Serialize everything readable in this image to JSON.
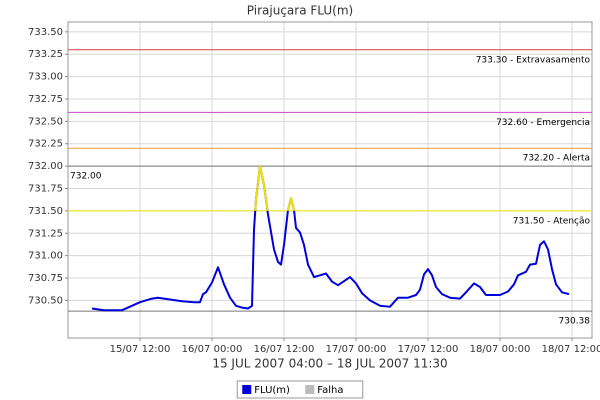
{
  "chart_data": {
    "type": "line",
    "title": "Pirajuçara FLU(m)",
    "xlabel": "15 JUL 2007 04:00 – 18 JUL 2007 11:30",
    "xlim": [
      "2007-07-15T00:00",
      "2007-07-18T15:20"
    ],
    "xticks": [
      {
        "value": "2007-07-15T12:00",
        "label": "15/07 12:00"
      },
      {
        "value": "2007-07-16T00:00",
        "label": "16/07 00:00"
      },
      {
        "value": "2007-07-16T12:00",
        "label": "16/07 12:00"
      },
      {
        "value": "2007-07-17T00:00",
        "label": "17/07 00:00"
      },
      {
        "value": "2007-07-17T12:00",
        "label": "17/07 12:00"
      },
      {
        "value": "2007-07-18T00:00",
        "label": "18/07 00:00"
      },
      {
        "value": "2007-07-18T12:00",
        "label": "18/07 12:00"
      }
    ],
    "ylim": [
      730.08,
      733.61
    ],
    "yticks": [
      {
        "value": 730.5,
        "label": "730.50"
      },
      730.75,
      {
        "value": 731,
        "label": "731.00"
      },
      731.25,
      {
        "value": 731.5,
        "label": "731.50"
      },
      731.75,
      {
        "value": 732,
        "label": "732.00"
      },
      732.25,
      {
        "value": 732.5,
        "label": "732.50"
      },
      732.75,
      {
        "value": 733,
        "label": "733.00"
      },
      733.25,
      {
        "value": 733.5,
        "label": "733.50"
      }
    ],
    "grid": true,
    "thresholds": [
      {
        "value": 733.3,
        "label": "733.30 - Extravasamento",
        "color": "#d04040",
        "side": "right"
      },
      {
        "value": 732.6,
        "label": "732.60 - Emergencia",
        "color": "#cc44cc",
        "side": "right"
      },
      {
        "value": 732.2,
        "label": "732.20 - Alerta",
        "color": "#ff9933",
        "side": "right"
      },
      {
        "value": 732.0,
        "label": "732.00",
        "color": "#777777",
        "side": "left"
      },
      {
        "value": 731.5,
        "label": "731.50 - Atenção",
        "color": "#e8e800",
        "side": "right"
      },
      {
        "value": 730.38,
        "label": "730.38",
        "color": "#777777",
        "side": "right"
      }
    ],
    "highlight": {
      "above": 731.5,
      "color": "#f0e000"
    },
    "series": [
      {
        "name": "FLU(m)",
        "color": "#0000dd",
        "x": [
          "2007-07-15T04:00",
          "2007-07-15T06:00",
          "2007-07-15T09:00",
          "2007-07-15T10:00",
          "2007-07-15T12:00",
          "2007-07-15T14:00",
          "2007-07-15T15:00",
          "2007-07-15T17:00",
          "2007-07-15T19:00",
          "2007-07-15T21:00",
          "2007-07-15T22:00",
          "2007-07-15T22:30",
          "2007-07-15T23:00",
          "2007-07-16T00:00",
          "2007-07-16T01:00",
          "2007-07-16T02:00",
          "2007-07-16T03:00",
          "2007-07-16T04:00",
          "2007-07-16T05:00",
          "2007-07-16T06:00",
          "2007-07-16T06:40",
          "2007-07-16T07:00",
          "2007-07-16T07:20",
          "2007-07-16T08:00",
          "2007-07-16T08:40",
          "2007-07-16T09:20",
          "2007-07-16T10:20",
          "2007-07-16T11:00",
          "2007-07-16T11:30",
          "2007-07-16T12:00",
          "2007-07-16T12:40",
          "2007-07-16T13:10",
          "2007-07-16T13:40",
          "2007-07-16T14:00",
          "2007-07-16T14:40",
          "2007-07-16T15:20",
          "2007-07-16T16:00",
          "2007-07-16T17:00",
          "2007-07-16T18:00",
          "2007-07-16T19:00",
          "2007-07-16T20:00",
          "2007-07-16T21:00",
          "2007-07-16T22:20",
          "2007-07-16T23:00",
          "2007-07-17T00:00",
          "2007-07-17T01:00",
          "2007-07-17T02:20",
          "2007-07-17T04:00",
          "2007-07-17T05:40",
          "2007-07-17T07:00",
          "2007-07-17T08:40",
          "2007-07-17T10:00",
          "2007-07-17T10:40",
          "2007-07-17T11:20",
          "2007-07-17T12:00",
          "2007-07-17T12:40",
          "2007-07-17T13:20",
          "2007-07-17T14:20",
          "2007-07-17T15:40",
          "2007-07-17T17:20",
          "2007-07-17T18:20",
          "2007-07-17T19:40",
          "2007-07-17T20:40",
          "2007-07-17T21:40",
          "2007-07-17T23:00",
          "2007-07-18T00:00",
          "2007-07-18T01:20",
          "2007-07-18T02:20",
          "2007-07-18T03:00",
          "2007-07-18T04:20",
          "2007-07-18T05:00",
          "2007-07-18T06:00",
          "2007-07-18T06:40",
          "2007-07-18T07:20",
          "2007-07-18T08:00",
          "2007-07-18T08:40",
          "2007-07-18T09:20",
          "2007-07-18T10:20",
          "2007-07-18T11:30"
        ],
        "values": [
          730.41,
          730.39,
          730.39,
          730.42,
          730.48,
          730.52,
          730.53,
          730.51,
          730.49,
          730.48,
          730.48,
          730.57,
          730.59,
          730.7,
          730.87,
          730.68,
          730.53,
          730.44,
          730.42,
          730.41,
          730.44,
          731.29,
          731.63,
          732.0,
          731.79,
          731.46,
          731.07,
          730.93,
          730.9,
          731.12,
          731.51,
          731.64,
          731.51,
          731.31,
          731.26,
          731.12,
          730.9,
          730.76,
          730.78,
          730.8,
          730.71,
          730.67,
          730.73,
          730.76,
          730.69,
          730.58,
          730.5,
          730.44,
          730.43,
          730.53,
          730.53,
          730.56,
          730.62,
          730.79,
          730.85,
          730.78,
          730.65,
          730.57,
          730.53,
          730.52,
          730.59,
          730.69,
          730.65,
          730.56,
          730.56,
          730.56,
          730.6,
          730.68,
          730.78,
          730.82,
          730.9,
          730.91,
          731.12,
          731.16,
          731.07,
          730.85,
          730.68,
          730.59,
          730.57
        ]
      },
      {
        "name": "Falha",
        "color": "#bbbbbb",
        "x": [],
        "values": []
      }
    ]
  }
}
